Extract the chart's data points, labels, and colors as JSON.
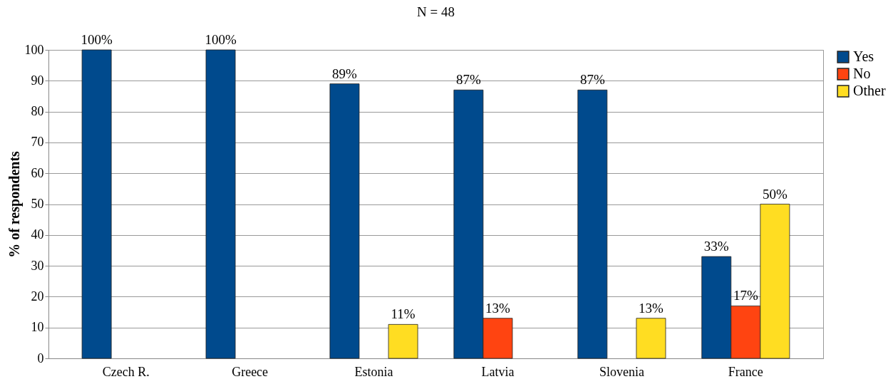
{
  "chart_data": {
    "type": "bar",
    "title": "N = 48",
    "ylabel": "% of respondents",
    "categories": [
      "Czech R.",
      "Greece",
      "Estonia",
      "Latvia",
      "Slovenia",
      "France"
    ],
    "series": [
      {
        "name": "Yes",
        "color": "#004a8d",
        "values": [
          100,
          100,
          89,
          87,
          87,
          33
        ],
        "value_labels": [
          "100%",
          "100%",
          "89%",
          "87%",
          "87%",
          "33%"
        ]
      },
      {
        "name": "No",
        "color": "#ff4411",
        "values": [
          null,
          null,
          null,
          13,
          null,
          17
        ],
        "value_labels": [
          null,
          null,
          null,
          "13%",
          null,
          "17%"
        ]
      },
      {
        "name": "Other",
        "color": "#ffdd22",
        "values": [
          null,
          null,
          11,
          null,
          13,
          50
        ],
        "value_labels": [
          null,
          null,
          "11%",
          null,
          "13%",
          "50%"
        ]
      }
    ],
    "ylim": [
      0,
      100
    ],
    "yticks": [
      0,
      10,
      20,
      30,
      40,
      50,
      60,
      70,
      80,
      90,
      100
    ],
    "grid": "y",
    "legend": "right"
  }
}
